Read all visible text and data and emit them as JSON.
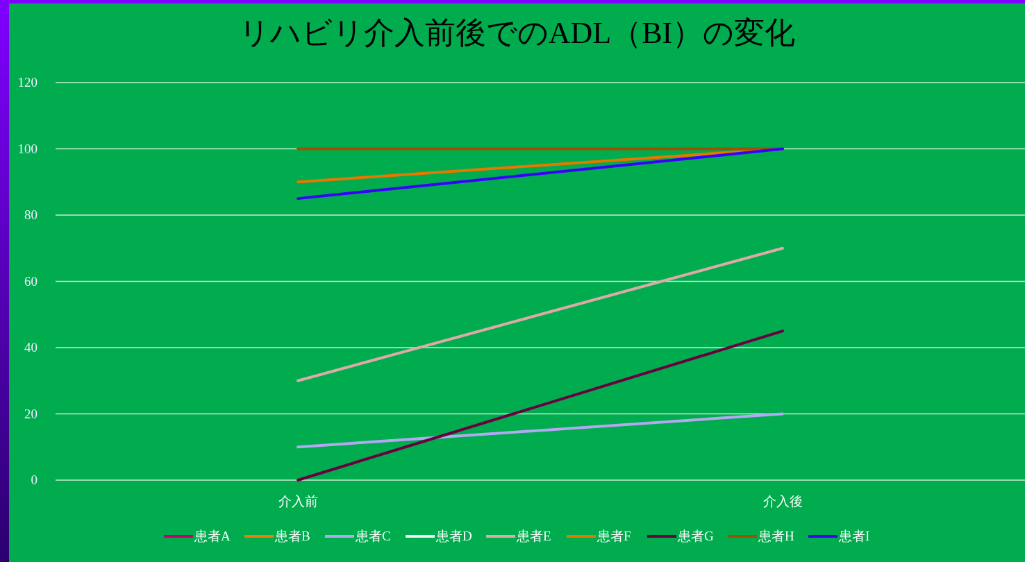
{
  "chart_data": {
    "type": "line",
    "title": "リハビリ介入前後でのADL（BI）の変化",
    "categories": [
      "介入前",
      "介入後"
    ],
    "series": [
      {
        "name": "患者A",
        "color": "#c8006e",
        "values": [
          null,
          null
        ]
      },
      {
        "name": "患者B",
        "color": "#f07c00",
        "values": [
          null,
          null
        ]
      },
      {
        "name": "患者C",
        "color": "#b4a8f4",
        "values": [
          10,
          20
        ]
      },
      {
        "name": "患者D",
        "color": "#f2f2f2",
        "values": [
          null,
          null
        ]
      },
      {
        "name": "患者E",
        "color": "#dcaaa8",
        "values": [
          30,
          70
        ]
      },
      {
        "name": "患者F",
        "color": "#e67800",
        "values": [
          90,
          100
        ]
      },
      {
        "name": "患者G",
        "color": "#6a0042",
        "values": [
          0,
          45
        ]
      },
      {
        "name": "患者H",
        "color": "#9c5200",
        "values": [
          100,
          100
        ]
      },
      {
        "name": "患者I",
        "color": "#3a00ff",
        "values": [
          85,
          100
        ]
      }
    ],
    "ylim": [
      0,
      120
    ],
    "yticks": [
      0,
      20,
      40,
      60,
      80,
      100,
      120
    ],
    "grid": "y",
    "legend": "bottom",
    "marker": "none",
    "line_style": "solid"
  }
}
